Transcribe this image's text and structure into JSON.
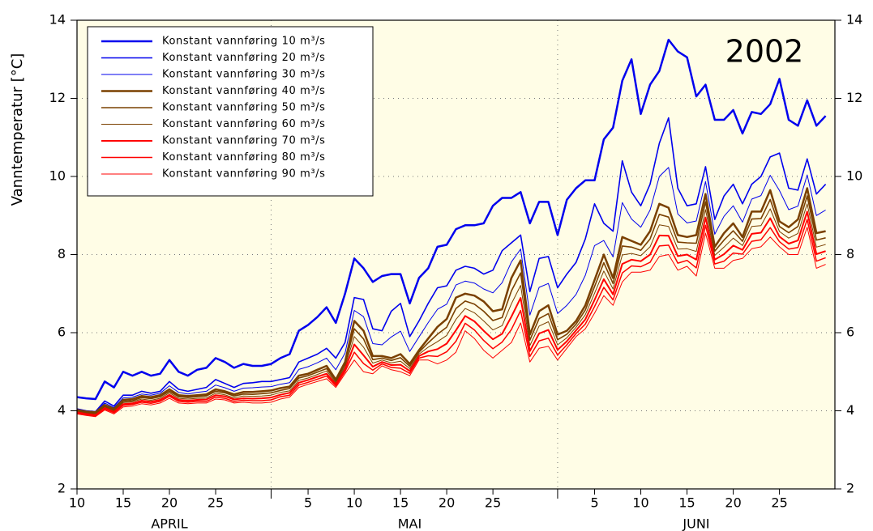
{
  "chart_data": {
    "type": "line",
    "title": "2002",
    "ylabel": "Vanntemperatur [°C]",
    "x": [
      "2002-04-10",
      "2002-04-11",
      "2002-04-12",
      "2002-04-13",
      "2002-04-14",
      "2002-04-15",
      "2002-04-16",
      "2002-04-17",
      "2002-04-18",
      "2002-04-19",
      "2002-04-20",
      "2002-04-21",
      "2002-04-22",
      "2002-04-23",
      "2002-04-24",
      "2002-04-25",
      "2002-04-26",
      "2002-04-27",
      "2002-04-28",
      "2002-04-29",
      "2002-04-30",
      "2002-05-01",
      "2002-05-02",
      "2002-05-03",
      "2002-05-04",
      "2002-05-05",
      "2002-05-06",
      "2002-05-07",
      "2002-05-08",
      "2002-05-09",
      "2002-05-10",
      "2002-05-11",
      "2002-05-12",
      "2002-05-13",
      "2002-05-14",
      "2002-05-15",
      "2002-05-16",
      "2002-05-17",
      "2002-05-18",
      "2002-05-19",
      "2002-05-20",
      "2002-05-21",
      "2002-05-22",
      "2002-05-23",
      "2002-05-24",
      "2002-05-25",
      "2002-05-26",
      "2002-05-27",
      "2002-05-28",
      "2002-05-29",
      "2002-05-30",
      "2002-05-31",
      "2002-06-01",
      "2002-06-02",
      "2002-06-03",
      "2002-06-04",
      "2002-06-05",
      "2002-06-06",
      "2002-06-07",
      "2002-06-08",
      "2002-06-09",
      "2002-06-10",
      "2002-06-11",
      "2002-06-12",
      "2002-06-13",
      "2002-06-14",
      "2002-06-15",
      "2002-06-16",
      "2002-06-17",
      "2002-06-18",
      "2002-06-19",
      "2002-06-20",
      "2002-06-21",
      "2002-06-22",
      "2002-06-23",
      "2002-06-24",
      "2002-06-25",
      "2002-06-26",
      "2002-06-27",
      "2002-06-28",
      "2002-06-29",
      "2002-06-30"
    ],
    "series": [
      {
        "name": "Konstant vannføring 10 m³/s",
        "color": "#0000ee",
        "line_width": 2.5,
        "values": [
          4.35,
          4.32,
          4.3,
          4.75,
          4.6,
          5.0,
          4.9,
          5.0,
          4.9,
          4.95,
          5.3,
          5.0,
          4.9,
          5.05,
          5.1,
          5.35,
          5.25,
          5.1,
          5.2,
          5.15,
          5.15,
          5.2,
          5.35,
          5.45,
          6.05,
          6.2,
          6.4,
          6.65,
          6.25,
          7.0,
          7.9,
          7.65,
          7.3,
          7.45,
          7.5,
          7.5,
          6.75,
          7.4,
          7.65,
          8.2,
          8.25,
          8.65,
          8.75,
          8.75,
          8.8,
          9.25,
          9.45,
          9.45,
          9.6,
          8.8,
          9.35,
          9.35,
          8.5,
          9.4,
          9.7,
          9.9,
          9.9,
          10.95,
          11.25,
          12.45,
          13.0,
          11.6,
          12.35,
          12.7,
          13.5,
          13.2,
          13.05,
          12.05,
          12.35,
          11.45,
          11.45,
          11.7,
          11.1,
          11.65,
          11.6,
          11.85,
          12.5,
          11.45,
          11.3,
          11.95,
          11.3,
          11.55
        ]
      },
      {
        "name": "Konstant vannføring 20 m³/s",
        "color": "#0000ee",
        "line_width": 1.6,
        "values": [
          4.05,
          4.0,
          3.98,
          4.25,
          4.12,
          4.4,
          4.4,
          4.5,
          4.45,
          4.5,
          4.75,
          4.55,
          4.5,
          4.55,
          4.6,
          4.8,
          4.7,
          4.6,
          4.7,
          4.72,
          4.75,
          4.75,
          4.8,
          4.85,
          5.25,
          5.35,
          5.45,
          5.6,
          5.35,
          5.75,
          6.9,
          6.85,
          6.1,
          6.05,
          6.55,
          6.75,
          5.9,
          6.3,
          6.75,
          7.15,
          7.2,
          7.6,
          7.7,
          7.65,
          7.5,
          7.6,
          8.1,
          8.3,
          8.5,
          7.05,
          7.9,
          7.95,
          7.15,
          7.5,
          7.8,
          8.4,
          9.3,
          8.8,
          8.6,
          10.4,
          9.6,
          9.25,
          9.8,
          10.85,
          11.5,
          9.7,
          9.25,
          9.3,
          10.25,
          8.9,
          9.5,
          9.8,
          9.3,
          9.8,
          10.0,
          10.5,
          10.6,
          9.7,
          9.65,
          10.45,
          9.55,
          9.8
        ]
      },
      {
        "name": "Konstant vannføring 30 m³/s",
        "color": "#0000ee",
        "line_width": 1,
        "values": [
          4.03,
          3.99,
          3.97,
          4.2,
          4.08,
          4.33,
          4.35,
          4.43,
          4.4,
          4.45,
          4.64,
          4.47,
          4.43,
          4.47,
          4.5,
          4.66,
          4.59,
          4.5,
          4.58,
          4.59,
          4.61,
          4.62,
          4.68,
          4.72,
          5.06,
          5.13,
          5.23,
          5.35,
          5.05,
          5.48,
          6.57,
          6.41,
          5.72,
          5.69,
          5.89,
          6.04,
          5.52,
          5.89,
          6.26,
          6.6,
          6.73,
          7.22,
          7.32,
          7.27,
          7.12,
          7.02,
          7.28,
          7.81,
          8.14,
          6.45,
          7.16,
          7.26,
          6.49,
          6.7,
          6.98,
          7.47,
          8.23,
          8.36,
          7.94,
          9.33,
          8.91,
          8.7,
          9.14,
          10.0,
          10.23,
          9.04,
          8.81,
          8.86,
          9.87,
          8.52,
          8.98,
          9.25,
          8.83,
          9.42,
          9.51,
          10.03,
          9.64,
          9.15,
          9.24,
          10.04,
          9.0,
          9.14
        ]
      },
      {
        "name": "Konstant vannføring 40 m³/s",
        "color": "#7a4000",
        "line_width": 2.5,
        "values": [
          4.02,
          3.98,
          3.96,
          4.15,
          4.05,
          4.28,
          4.3,
          4.38,
          4.35,
          4.4,
          4.55,
          4.4,
          4.38,
          4.4,
          4.42,
          4.55,
          4.5,
          4.42,
          4.48,
          4.48,
          4.5,
          4.52,
          4.58,
          4.62,
          4.9,
          4.95,
          5.05,
          5.15,
          4.8,
          5.25,
          6.3,
          6.05,
          5.4,
          5.4,
          5.35,
          5.45,
          5.2,
          5.55,
          5.85,
          6.15,
          6.35,
          6.9,
          7.0,
          6.95,
          6.8,
          6.55,
          6.6,
          7.4,
          7.85,
          5.95,
          6.55,
          6.7,
          5.95,
          6.05,
          6.3,
          6.7,
          7.35,
          8.0,
          7.4,
          8.45,
          8.35,
          8.25,
          8.6,
          9.3,
          9.2,
          8.5,
          8.45,
          8.5,
          9.55,
          8.2,
          8.55,
          8.8,
          8.45,
          9.1,
          9.1,
          9.65,
          8.85,
          8.7,
          8.9,
          9.7,
          8.55,
          8.6
        ]
      },
      {
        "name": "Konstant vannføring 50 m³/s",
        "color": "#7a4000",
        "line_width": 1.6,
        "values": [
          4.0,
          3.96,
          3.94,
          4.12,
          4.02,
          4.24,
          4.26,
          4.34,
          4.31,
          4.36,
          4.5,
          4.36,
          4.34,
          4.36,
          4.38,
          4.5,
          4.46,
          4.38,
          4.43,
          4.42,
          4.44,
          4.46,
          4.52,
          4.57,
          4.84,
          4.9,
          4.99,
          5.08,
          4.76,
          5.19,
          6.1,
          5.84,
          5.31,
          5.35,
          5.29,
          5.36,
          5.14,
          5.5,
          5.74,
          5.96,
          6.14,
          6.62,
          6.81,
          6.73,
          6.55,
          6.31,
          6.39,
          7.07,
          7.53,
          5.81,
          6.36,
          6.49,
          5.82,
          5.96,
          6.22,
          6.58,
          7.18,
          7.79,
          7.26,
          8.22,
          8.19,
          8.11,
          8.4,
          9.03,
          8.96,
          8.32,
          8.3,
          8.29,
          9.35,
          8.09,
          8.37,
          8.61,
          8.34,
          8.91,
          8.92,
          9.41,
          8.72,
          8.56,
          8.72,
          9.5,
          8.37,
          8.43
        ]
      },
      {
        "name": "Konstant vannføring 60 m³/s",
        "color": "#7a4000",
        "line_width": 1,
        "values": [
          3.98,
          3.94,
          3.92,
          4.1,
          4.0,
          4.21,
          4.23,
          4.3,
          4.27,
          4.32,
          4.46,
          4.32,
          4.3,
          4.32,
          4.33,
          4.45,
          4.41,
          4.33,
          4.38,
          4.37,
          4.38,
          4.4,
          4.47,
          4.51,
          4.78,
          4.84,
          4.93,
          5.02,
          4.72,
          5.13,
          5.9,
          5.63,
          5.22,
          5.3,
          5.23,
          5.27,
          5.08,
          5.45,
          5.63,
          5.77,
          5.93,
          6.34,
          6.62,
          6.51,
          6.3,
          6.07,
          6.18,
          6.74,
          7.21,
          5.67,
          6.17,
          6.28,
          5.69,
          5.87,
          6.14,
          6.46,
          7.01,
          7.58,
          7.12,
          7.99,
          8.03,
          7.97,
          8.2,
          8.76,
          8.72,
          8.14,
          8.15,
          8.08,
          9.15,
          7.98,
          8.19,
          8.42,
          8.23,
          8.72,
          8.74,
          9.17,
          8.59,
          8.42,
          8.54,
          9.3,
          8.19,
          8.26
        ]
      },
      {
        "name": "Konstant vannføring 70 m³/s",
        "color": "#ff0000",
        "line_width": 2,
        "values": [
          3.96,
          3.92,
          3.89,
          4.07,
          3.97,
          4.17,
          4.19,
          4.26,
          4.23,
          4.28,
          4.41,
          4.28,
          4.26,
          4.28,
          4.29,
          4.4,
          4.37,
          4.29,
          4.32,
          4.31,
          4.32,
          4.34,
          4.41,
          4.46,
          4.72,
          4.79,
          4.87,
          4.95,
          4.68,
          5.07,
          5.7,
          5.42,
          5.13,
          5.25,
          5.17,
          5.18,
          5.02,
          5.4,
          5.52,
          5.58,
          5.72,
          6.06,
          6.43,
          6.29,
          6.05,
          5.83,
          5.97,
          6.41,
          6.89,
          5.53,
          5.98,
          6.07,
          5.56,
          5.78,
          6.06,
          6.34,
          6.84,
          7.37,
          6.98,
          7.76,
          7.87,
          7.83,
          8.0,
          8.49,
          8.48,
          7.96,
          8.0,
          7.87,
          8.95,
          7.87,
          8.01,
          8.23,
          8.12,
          8.53,
          8.56,
          8.93,
          8.46,
          8.28,
          8.36,
          9.1,
          8.01,
          8.09
        ]
      },
      {
        "name": "Konstant vannføring 80 m³/s",
        "color": "#ff0000",
        "line_width": 1.5,
        "values": [
          3.94,
          3.9,
          3.87,
          4.05,
          3.95,
          4.14,
          4.16,
          4.22,
          4.19,
          4.24,
          4.37,
          4.24,
          4.22,
          4.24,
          4.24,
          4.35,
          4.32,
          4.24,
          4.27,
          4.26,
          4.26,
          4.28,
          4.36,
          4.4,
          4.66,
          4.73,
          4.81,
          4.89,
          4.64,
          5.01,
          5.5,
          5.21,
          5.04,
          5.2,
          5.11,
          5.09,
          4.96,
          5.35,
          5.41,
          5.39,
          5.51,
          5.78,
          6.24,
          6.07,
          5.8,
          5.59,
          5.76,
          6.08,
          6.57,
          5.39,
          5.79,
          5.86,
          5.43,
          5.69,
          5.98,
          6.22,
          6.67,
          7.16,
          6.84,
          7.53,
          7.71,
          7.69,
          7.8,
          8.22,
          8.24,
          7.78,
          7.85,
          7.66,
          8.75,
          7.76,
          7.83,
          8.04,
          8.01,
          8.34,
          8.38,
          8.69,
          8.33,
          8.14,
          8.18,
          8.9,
          7.83,
          7.92
        ]
      },
      {
        "name": "Konstant vannføring 90 m³/s",
        "color": "#ff0000",
        "line_width": 1,
        "values": [
          3.92,
          3.88,
          3.85,
          4.02,
          3.92,
          4.1,
          4.12,
          4.18,
          4.15,
          4.2,
          4.32,
          4.2,
          4.18,
          4.2,
          4.2,
          4.3,
          4.28,
          4.2,
          4.22,
          4.2,
          4.2,
          4.22,
          4.3,
          4.35,
          4.6,
          4.68,
          4.75,
          4.82,
          4.6,
          4.95,
          5.3,
          5.0,
          4.95,
          5.15,
          5.05,
          5.0,
          4.9,
          5.3,
          5.3,
          5.2,
          5.3,
          5.5,
          6.05,
          5.85,
          5.55,
          5.35,
          5.55,
          5.75,
          6.25,
          5.25,
          5.6,
          5.65,
          5.3,
          5.6,
          5.9,
          6.1,
          6.5,
          6.95,
          6.7,
          7.3,
          7.55,
          7.55,
          7.6,
          7.95,
          8.0,
          7.6,
          7.7,
          7.45,
          8.55,
          7.65,
          7.65,
          7.85,
          7.9,
          8.15,
          8.2,
          8.45,
          8.2,
          8.0,
          8.0,
          8.7,
          7.65,
          7.75
        ]
      }
    ],
    "xlim": [
      "2002-04-10",
      "2002-07-01"
    ],
    "xticks": [
      {
        "value": "2002-04-10",
        "label": "10"
      },
      {
        "value": "2002-04-15",
        "label": "15"
      },
      {
        "value": "2002-04-20",
        "label": "20"
      },
      {
        "value": "2002-04-25",
        "label": "25"
      },
      {
        "value": "2002-05-01",
        "label": null
      },
      {
        "value": "2002-05-05",
        "label": "5"
      },
      {
        "value": "2002-05-10",
        "label": "10"
      },
      {
        "value": "2002-05-15",
        "label": "15"
      },
      {
        "value": "2002-05-20",
        "label": "20"
      },
      {
        "value": "2002-05-25",
        "label": "25"
      },
      {
        "value": "2002-06-01",
        "label": null
      },
      {
        "value": "2002-06-05",
        "label": "5"
      },
      {
        "value": "2002-06-10",
        "label": "10"
      },
      {
        "value": "2002-06-15",
        "label": "15"
      },
      {
        "value": "2002-06-20",
        "label": "20"
      },
      {
        "value": "2002-06-25",
        "label": "25"
      }
    ],
    "month_labels": [
      {
        "value": "2002-04-20",
        "label": "APRIL"
      },
      {
        "value": "2002-05-16",
        "label": "MAI"
      },
      {
        "value": "2002-06-16",
        "label": "JUNI"
      }
    ],
    "ylim": [
      2,
      14
    ],
    "yticks": [
      2,
      4,
      6,
      8,
      10,
      12,
      14
    ],
    "grid": true,
    "legend": "upper left",
    "background": "#fffde6"
  }
}
